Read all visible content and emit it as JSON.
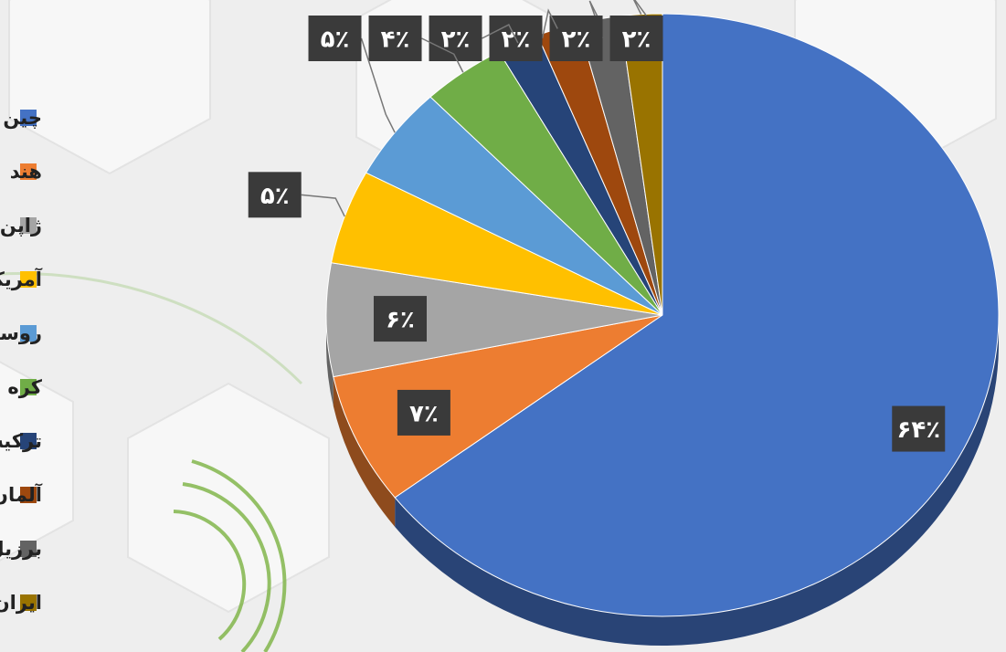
{
  "chart_data": {
    "type": "pie",
    "categories": [
      "چین",
      "هند",
      "ژاپن",
      "آمریکا",
      "روسیه",
      "کره جنوبی",
      "ترکیه",
      "آلمان",
      "برزیل",
      "ایران"
    ],
    "values": [
      64,
      7,
      6,
      5,
      5,
      4,
      2,
      2,
      2,
      2
    ],
    "value_labels": [
      "۶۴٪",
      "۷٪",
      "۶٪",
      "۵٪",
      "۵٪",
      "۴٪",
      "۲٪",
      "۲٪",
      "۲٪",
      "۲٪"
    ],
    "colors": [
      "#4472c4",
      "#ed7d31",
      "#a5a5a5",
      "#ffc000",
      "#5b9bd5",
      "#70ad47",
      "#264478",
      "#9e480e",
      "#636363",
      "#997300"
    ],
    "legend": "left"
  }
}
